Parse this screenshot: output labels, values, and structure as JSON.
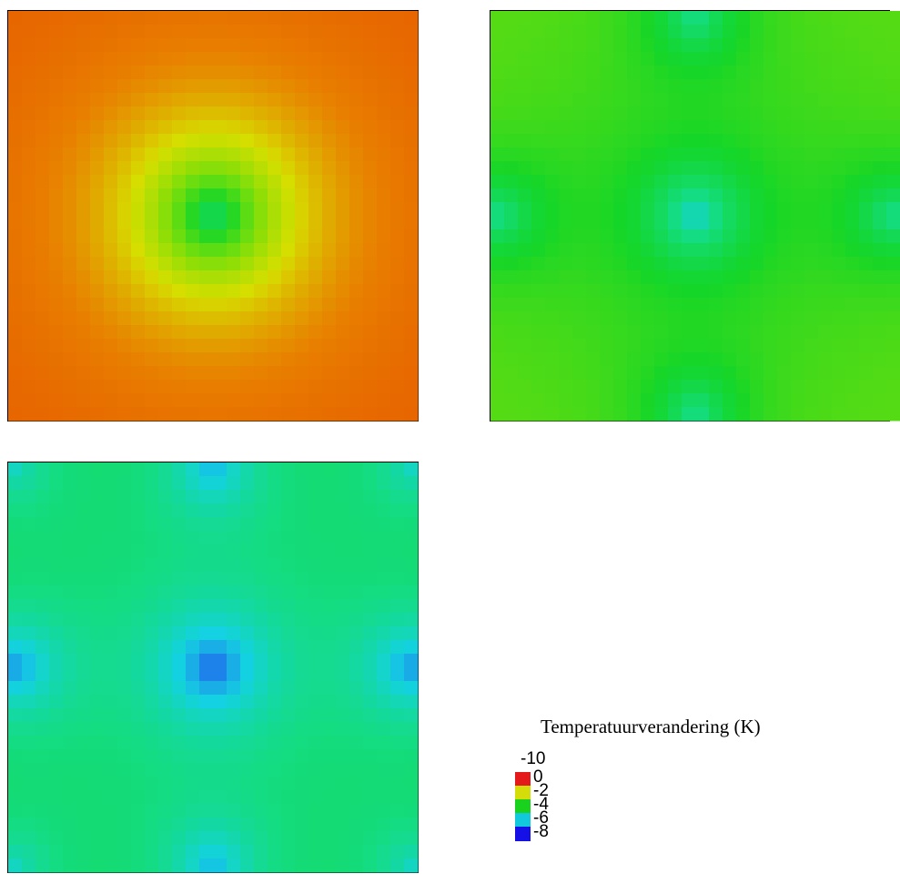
{
  "chart_data": {
    "type": "heatmap",
    "title": "",
    "xlabel": "",
    "ylabel": "",
    "grid": false,
    "resolution": 30,
    "value_range": [
      -8,
      0
    ],
    "panels": [
      {
        "name": "",
        "baseline": -0.3,
        "tile_period": 30,
        "sources": [
          {
            "col": 15,
            "row": 15,
            "depth": -4.0
          }
        ]
      },
      {
        "name": "",
        "baseline": -3.2,
        "tile_period": 15,
        "sources": [
          {
            "col": 15,
            "row": 15,
            "depth": -5.4
          },
          {
            "col": 15,
            "row": 0,
            "depth": -5.0
          },
          {
            "col": 15,
            "row": 30,
            "depth": -5.0
          },
          {
            "col": 0,
            "row": 15,
            "depth": -5.0
          },
          {
            "col": 30,
            "row": 15,
            "depth": -5.0
          }
        ]
      },
      {
        "name": "",
        "baseline": -4.4,
        "tile_period": 15,
        "sources": [
          {
            "col": 15,
            "row": 15,
            "depth": -7.0
          },
          {
            "col": 15,
            "row": 0,
            "depth": -6.2
          },
          {
            "col": 15,
            "row": 30,
            "depth": -6.2
          },
          {
            "col": 0,
            "row": 15,
            "depth": -6.6
          },
          {
            "col": 30,
            "row": 15,
            "depth": -6.6
          },
          {
            "col": 0,
            "row": 0,
            "depth": -5.5
          },
          {
            "col": 30,
            "row": 0,
            "depth": -5.5
          },
          {
            "col": 0,
            "row": 30,
            "depth": -5.5
          },
          {
            "col": 30,
            "row": 30,
            "depth": -5.5
          }
        ]
      }
    ],
    "legend": {
      "title": "Temperatuurverandering (K)",
      "cut_label": "-10",
      "placement": "bottom-right",
      "entries": [
        {
          "label": "0",
          "color": "#e41a1a"
        },
        {
          "label": "-2",
          "color": "#d4dd0a"
        },
        {
          "label": "-4",
          "color": "#18d21e"
        },
        {
          "label": "-6",
          "color": "#12c8dc"
        },
        {
          "label": "-8",
          "color": "#1410e6"
        }
      ]
    }
  }
}
